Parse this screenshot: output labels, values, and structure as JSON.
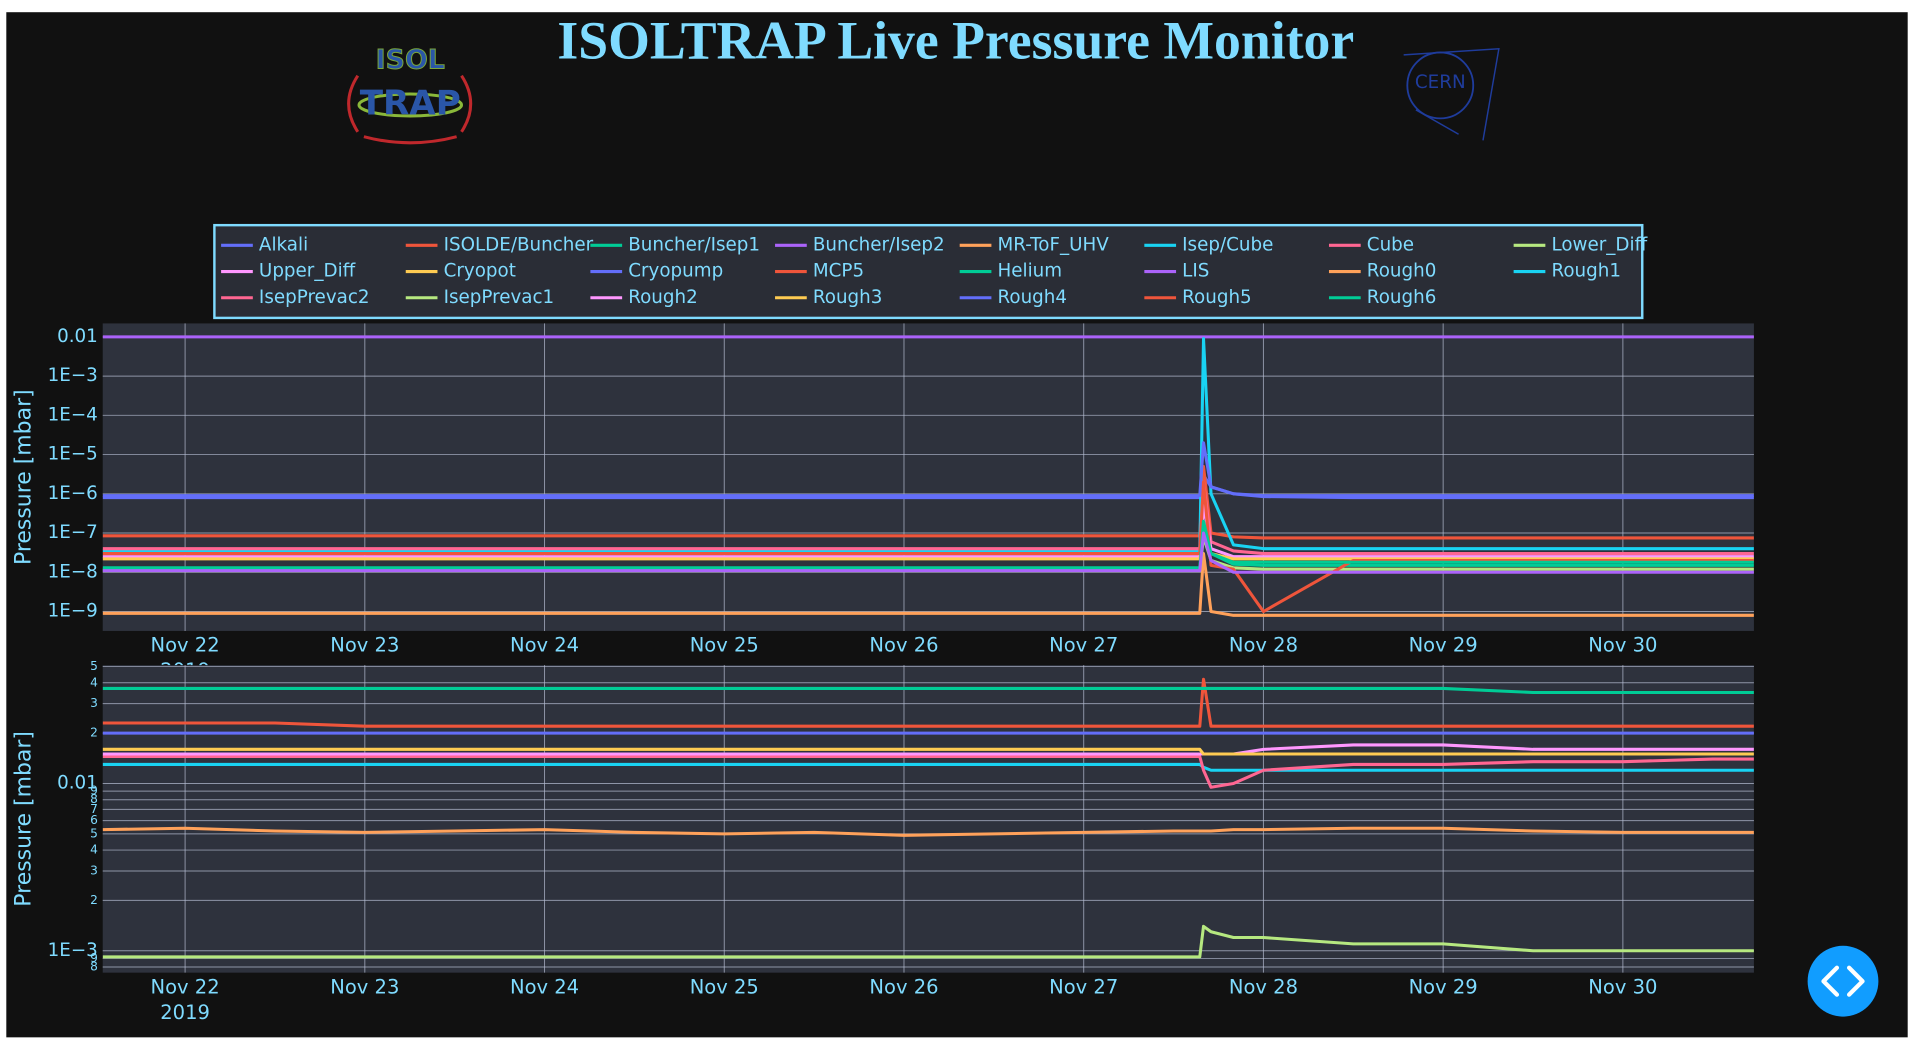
{
  "title": "ISOLTRAP Live Pressure Monitor",
  "isoltrap_logo": {
    "top": "ISOL",
    "bottom": "TRAP"
  },
  "cern_logo": "CERN",
  "chart_data": [
    {
      "type": "line",
      "y_label": "Pressure [mbar]",
      "log_y": true,
      "grid": true,
      "legend": "top",
      "x": [
        "2019-11-21T13:00",
        "2019-11-22T00:00",
        "2019-11-22T12:00",
        "2019-11-23T00:00",
        "2019-11-23T12:00",
        "2019-11-24T00:00",
        "2019-11-24T12:00",
        "2019-11-25T00:00",
        "2019-11-25T12:00",
        "2019-11-26T00:00",
        "2019-11-26T12:00",
        "2019-11-27T00:00",
        "2019-11-27T12:00",
        "2019-11-27T15:30",
        "2019-11-27T16:00",
        "2019-11-27T17:00",
        "2019-11-27T20:00",
        "2019-11-28T00:00",
        "2019-11-28T12:00",
        "2019-11-29T00:00",
        "2019-11-29T12:00",
        "2019-11-30T00:00",
        "2019-11-30T12:00",
        "2019-11-30T17:30"
      ],
      "xlim": [
        "2019-11-21T13:00",
        "2019-11-30T17:30"
      ],
      "xticks": [
        {
          "value": "2019-11-22",
          "label": "Nov 22\n2019"
        },
        {
          "value": "2019-11-23",
          "label": "Nov 23"
        },
        {
          "value": "2019-11-24",
          "label": "Nov 24"
        },
        {
          "value": "2019-11-25",
          "label": "Nov 25"
        },
        {
          "value": "2019-11-26",
          "label": "Nov 26"
        },
        {
          "value": "2019-11-27",
          "label": "Nov 27"
        },
        {
          "value": "2019-11-28",
          "label": "Nov 28"
        },
        {
          "value": "2019-11-29",
          "label": "Nov 29"
        },
        {
          "value": "2019-11-30",
          "label": "Nov 30"
        }
      ],
      "ylim": [
        3.2e-10,
        0.022
      ],
      "yticks": [
        0.01,
        {
          "value": 0.001,
          "label": "1E−3"
        },
        {
          "value": 0.0001,
          "label": "1E−4"
        },
        {
          "value": 1e-05,
          "label": "1E−5"
        },
        {
          "value": 1e-06,
          "label": "1E−6"
        },
        {
          "value": 1e-07,
          "label": "1E−7"
        },
        {
          "value": 1e-08,
          "label": "1E−8"
        },
        {
          "value": 1e-09,
          "label": "1E−9"
        }
      ],
      "series": [
        {
          "name": "Alkali",
          "color": "#636efa",
          "values": [
            8e-07,
            8e-07,
            8e-07,
            8e-07,
            8e-07,
            8e-07,
            8e-07,
            8e-07,
            8e-07,
            8e-07,
            8e-07,
            8e-07,
            8e-07,
            8e-07,
            3e-06,
            1.5e-06,
            1e-06,
            8.5e-07,
            8e-07,
            8e-07,
            8e-07,
            8e-07,
            8e-07,
            8e-07
          ]
        },
        {
          "name": "ISOLDE/Buncher",
          "color": "#EF553B",
          "values": [
            8.5e-08,
            8.5e-08,
            8.5e-08,
            8.5e-08,
            8.5e-08,
            8.5e-08,
            8.5e-08,
            8.5e-08,
            8.5e-08,
            8.5e-08,
            8.5e-08,
            8.5e-08,
            8.5e-08,
            8.5e-08,
            5e-06,
            1e-07,
            8e-08,
            7.5e-08,
            7.5e-08,
            7.5e-08,
            7.5e-08,
            7.5e-08,
            7.5e-08,
            7.5e-08
          ]
        },
        {
          "name": "Buncher/Isep1",
          "color": "#00cc96",
          "values": [
            1.2e-08,
            1.2e-08,
            1.2e-08,
            1.2e-08,
            1.2e-08,
            1.2e-08,
            1.2e-08,
            1.2e-08,
            1.2e-08,
            1.2e-08,
            1.2e-08,
            1.2e-08,
            1.2e-08,
            1.2e-08,
            1e-07,
            3e-08,
            1.6e-08,
            1.5e-08,
            1.5e-08,
            1.5e-08,
            1.5e-08,
            1.5e-08,
            1.5e-08,
            1.5e-08
          ]
        },
        {
          "name": "Buncher/Isep2",
          "color": "#ab63fa",
          "values": [
            0.01,
            0.01,
            0.01,
            0.01,
            0.01,
            0.01,
            0.01,
            0.01,
            0.01,
            0.01,
            0.01,
            0.01,
            0.01,
            0.01,
            0.01,
            0.01,
            0.01,
            0.01,
            0.01,
            0.01,
            0.01,
            0.01,
            0.01,
            0.01
          ]
        },
        {
          "name": "MR-ToF_UHV",
          "color": "#FFA15A",
          "values": [
            9e-10,
            9e-10,
            9e-10,
            9e-10,
            9e-10,
            9e-10,
            9e-10,
            9e-10,
            9e-10,
            9e-10,
            9e-10,
            9e-10,
            9e-10,
            9e-10,
            3e-08,
            1e-09,
            8e-10,
            8e-10,
            8e-10,
            8e-10,
            8e-10,
            8e-10,
            8e-10,
            8e-10
          ]
        },
        {
          "name": "Isep/Cube",
          "color": "#19d3f3",
          "values": [
            3.5e-08,
            3.5e-08,
            3.5e-08,
            3.5e-08,
            3.5e-08,
            3.5e-08,
            3.5e-08,
            3.5e-08,
            3.5e-08,
            3.5e-08,
            3.5e-08,
            3.5e-08,
            3.5e-08,
            3.5e-08,
            0.009,
            1e-06,
            5e-08,
            4e-08,
            4e-08,
            4e-08,
            4e-08,
            4e-08,
            4e-08,
            4e-08
          ]
        },
        {
          "name": "Cube",
          "color": "#FF6692",
          "values": [
            4e-08,
            4e-08,
            4e-08,
            4e-08,
            4e-08,
            4e-08,
            4e-08,
            4e-08,
            4e-08,
            4e-08,
            4e-08,
            4e-08,
            4e-08,
            4e-08,
            2e-06,
            6e-08,
            3.5e-08,
            3e-08,
            3e-08,
            3e-08,
            3e-08,
            3e-08,
            3e-08,
            3e-08
          ]
        },
        {
          "name": "Lower_Diff",
          "color": "#B6E880",
          "values": [
            1.1e-08,
            1.1e-08,
            1.1e-08,
            1.1e-08,
            1.1e-08,
            1.1e-08,
            1.1e-08,
            1.1e-08,
            1.1e-08,
            1.1e-08,
            1.1e-08,
            1.1e-08,
            1.1e-08,
            1.1e-08,
            8e-08,
            2e-08,
            1.3e-08,
            1.2e-08,
            1.2e-08,
            1.2e-08,
            1.2e-08,
            1.2e-08,
            1.2e-08,
            1.2e-08
          ]
        },
        {
          "name": "Upper_Diff",
          "color": "#FF97FF",
          "values": [
            2.5e-08,
            2.5e-08,
            2.5e-08,
            2.5e-08,
            2.5e-08,
            2.5e-08,
            2.5e-08,
            2.5e-08,
            2.5e-08,
            2.5e-08,
            2.5e-08,
            2.5e-08,
            2.5e-08,
            2.5e-08,
            5e-07,
            4e-08,
            2.5e-08,
            2.5e-08,
            2.5e-08,
            2.5e-08,
            2.5e-08,
            2.5e-08,
            2.5e-08,
            2.5e-08
          ]
        },
        {
          "name": "Cryopot",
          "color": "#FECB52",
          "values": [
            2.2e-08,
            2.2e-08,
            2.2e-08,
            2.2e-08,
            2.2e-08,
            2.2e-08,
            2.2e-08,
            2.2e-08,
            2.2e-08,
            2.2e-08,
            2.2e-08,
            2.2e-08,
            2.2e-08,
            2.2e-08,
            1e-07,
            3e-08,
            2.2e-08,
            2.2e-08,
            2.2e-08,
            2.2e-08,
            2.2e-08,
            2.2e-08,
            2.2e-08,
            2.2e-08
          ]
        },
        {
          "name": "Cryopump",
          "color": "#636efa",
          "values": [
            9e-07,
            9e-07,
            9e-07,
            9e-07,
            9e-07,
            9e-07,
            9e-07,
            9e-07,
            9e-07,
            9e-07,
            9e-07,
            9e-07,
            9e-07,
            9e-07,
            2e-05,
            1.5e-06,
            1e-06,
            9e-07,
            9e-07,
            9e-07,
            9e-07,
            9e-07,
            9e-07,
            9e-07
          ]
        },
        {
          "name": "MCP5",
          "color": "#EF553B",
          "values": [
            3e-08,
            3e-08,
            3e-08,
            3e-08,
            3e-08,
            3e-08,
            3e-08,
            3e-08,
            3e-08,
            3e-08,
            3e-08,
            3e-08,
            3e-08,
            3e-08,
            2e-06,
            1.5e-08,
            1.2e-08,
            1e-09,
            2e-08,
            2e-08,
            2e-08,
            2e-08,
            2e-08,
            2e-08
          ]
        },
        {
          "name": "Helium",
          "color": "#00cc96",
          "values": [
            1.3e-08,
            1.3e-08,
            1.3e-08,
            1.3e-08,
            1.3e-08,
            1.3e-08,
            1.3e-08,
            1.3e-08,
            1.3e-08,
            1.3e-08,
            1.3e-08,
            1.3e-08,
            1.3e-08,
            1.3e-08,
            2e-07,
            3e-08,
            1.8e-08,
            1.8e-08,
            1.8e-08,
            1.8e-08,
            1.8e-08,
            1.8e-08,
            1.8e-08,
            1.8e-08
          ]
        },
        {
          "name": "LIS",
          "color": "#ab63fa",
          "values": [
            1.1e-08,
            1.1e-08,
            1.1e-08,
            1.1e-08,
            1.1e-08,
            1.1e-08,
            1.1e-08,
            1.1e-08,
            1.1e-08,
            1.1e-08,
            1.1e-08,
            1.1e-08,
            1.1e-08,
            1.1e-08,
            1e-07,
            2e-08,
            1e-08,
            1e-08,
            1e-08,
            1e-08,
            1e-08,
            1e-08,
            1e-08,
            1e-08
          ]
        }
      ]
    },
    {
      "type": "line",
      "y_label": "Pressure [mbar]",
      "log_y": true,
      "grid": true,
      "x": [
        "2019-11-21T13:00",
        "2019-11-22T00:00",
        "2019-11-22T12:00",
        "2019-11-23T00:00",
        "2019-11-23T12:00",
        "2019-11-24T00:00",
        "2019-11-24T12:00",
        "2019-11-25T00:00",
        "2019-11-25T12:00",
        "2019-11-26T00:00",
        "2019-11-26T12:00",
        "2019-11-27T00:00",
        "2019-11-27T12:00",
        "2019-11-27T15:30",
        "2019-11-27T16:00",
        "2019-11-27T17:00",
        "2019-11-27T20:00",
        "2019-11-28T00:00",
        "2019-11-28T12:00",
        "2019-11-29T00:00",
        "2019-11-29T12:00",
        "2019-11-30T00:00",
        "2019-11-30T12:00",
        "2019-11-30T17:30"
      ],
      "xlim": [
        "2019-11-21T13:00",
        "2019-11-30T17:30"
      ],
      "xticks": [
        {
          "value": "2019-11-22",
          "label": "Nov 22\n2019"
        },
        {
          "value": "2019-11-23",
          "label": "Nov 23"
        },
        {
          "value": "2019-11-24",
          "label": "Nov 24"
        },
        {
          "value": "2019-11-25",
          "label": "Nov 25"
        },
        {
          "value": "2019-11-26",
          "label": "Nov 26"
        },
        {
          "value": "2019-11-27",
          "label": "Nov 27"
        },
        {
          "value": "2019-11-28",
          "label": "Nov 28"
        },
        {
          "value": "2019-11-29",
          "label": "Nov 29"
        },
        {
          "value": "2019-11-30",
          "label": "Nov 30"
        }
      ],
      "ylim": [
        0.00074,
        0.051
      ],
      "yticks": [
        {
          "value": 0.05,
          "label": "5"
        },
        {
          "value": 0.04,
          "label": "4"
        },
        {
          "value": 0.03,
          "label": "3"
        },
        {
          "value": 0.02,
          "label": "2"
        },
        0.01,
        {
          "value": 0.009,
          "label": "9"
        },
        {
          "value": 0.008,
          "label": "8"
        },
        {
          "value": 0.007,
          "label": "7"
        },
        {
          "value": 0.006,
          "label": "6"
        },
        {
          "value": 0.005,
          "label": "5"
        },
        {
          "value": 0.004,
          "label": "4"
        },
        {
          "value": 0.003,
          "label": "3"
        },
        {
          "value": 0.002,
          "label": "2"
        },
        {
          "value": 0.001,
          "label": "1E−3"
        },
        {
          "value": 0.0009,
          "label": "9"
        },
        {
          "value": 0.0008,
          "label": "8"
        }
      ],
      "series": [
        {
          "name": "Rough0",
          "color": "#FFA15A",
          "values": [
            0.0053,
            0.0054,
            0.0052,
            0.0051,
            0.0052,
            0.0053,
            0.0051,
            0.005,
            0.0051,
            0.0049,
            0.005,
            0.0051,
            0.0052,
            0.0052,
            0.0052,
            0.0052,
            0.0053,
            0.0053,
            0.0054,
            0.0054,
            0.0052,
            0.0051,
            0.0051,
            0.0051
          ]
        },
        {
          "name": "Rough1",
          "color": "#19d3f3",
          "values": [
            0.013,
            0.013,
            0.013,
            0.013,
            0.013,
            0.013,
            0.013,
            0.013,
            0.013,
            0.013,
            0.013,
            0.013,
            0.013,
            0.013,
            0.0125,
            0.012,
            0.012,
            0.012,
            0.012,
            0.012,
            0.012,
            0.012,
            0.012,
            0.012
          ]
        },
        {
          "name": "IsepPrevac2",
          "color": "#FF6692",
          "values": [
            0.0145,
            0.0145,
            0.0145,
            0.0145,
            0.0145,
            0.0145,
            0.0145,
            0.0145,
            0.0145,
            0.0145,
            0.0145,
            0.0145,
            0.0145,
            0.0145,
            0.012,
            0.0095,
            0.01,
            0.012,
            0.013,
            0.013,
            0.0135,
            0.0135,
            0.014,
            0.014
          ]
        },
        {
          "name": "IsepPrevac1",
          "color": "#B6E880",
          "values": [
            0.00092,
            0.00092,
            0.00092,
            0.00092,
            0.00092,
            0.00092,
            0.00092,
            0.00092,
            0.00092,
            0.00092,
            0.00092,
            0.00092,
            0.00092,
            0.00092,
            0.0014,
            0.0013,
            0.0012,
            0.0012,
            0.0011,
            0.0011,
            0.001,
            0.001,
            0.001,
            0.001
          ]
        },
        {
          "name": "Rough2",
          "color": "#FF97FF",
          "values": [
            0.015,
            0.015,
            0.015,
            0.015,
            0.015,
            0.015,
            0.015,
            0.015,
            0.015,
            0.015,
            0.015,
            0.015,
            0.015,
            0.015,
            0.015,
            0.015,
            0.015,
            0.016,
            0.017,
            0.017,
            0.016,
            0.016,
            0.016,
            0.016
          ]
        },
        {
          "name": "Rough3",
          "color": "#FECB52",
          "values": [
            0.016,
            0.016,
            0.016,
            0.016,
            0.016,
            0.016,
            0.016,
            0.016,
            0.016,
            0.016,
            0.016,
            0.016,
            0.016,
            0.016,
            0.015,
            0.015,
            0.015,
            0.015,
            0.015,
            0.015,
            0.015,
            0.015,
            0.015,
            0.015
          ]
        },
        {
          "name": "Rough4",
          "color": "#636efa",
          "values": [
            0.02,
            0.02,
            0.02,
            0.02,
            0.02,
            0.02,
            0.02,
            0.02,
            0.02,
            0.02,
            0.02,
            0.02,
            0.02,
            0.02,
            0.02,
            0.02,
            0.02,
            0.02,
            0.02,
            0.02,
            0.02,
            0.02,
            0.02,
            0.02
          ]
        },
        {
          "name": "Rough5",
          "color": "#EF553B",
          "values": [
            0.023,
            0.023,
            0.023,
            0.022,
            0.022,
            0.022,
            0.022,
            0.022,
            0.022,
            0.022,
            0.022,
            0.022,
            0.022,
            0.022,
            0.042,
            0.022,
            0.022,
            0.022,
            0.022,
            0.022,
            0.022,
            0.022,
            0.022,
            0.022
          ]
        },
        {
          "name": "Rough6",
          "color": "#00cc96",
          "values": [
            0.037,
            0.037,
            0.037,
            0.037,
            0.037,
            0.037,
            0.037,
            0.037,
            0.037,
            0.037,
            0.037,
            0.037,
            0.037,
            0.037,
            0.037,
            0.037,
            0.037,
            0.037,
            0.037,
            0.037,
            0.035,
            0.035,
            0.035,
            0.035
          ]
        }
      ]
    }
  ]
}
